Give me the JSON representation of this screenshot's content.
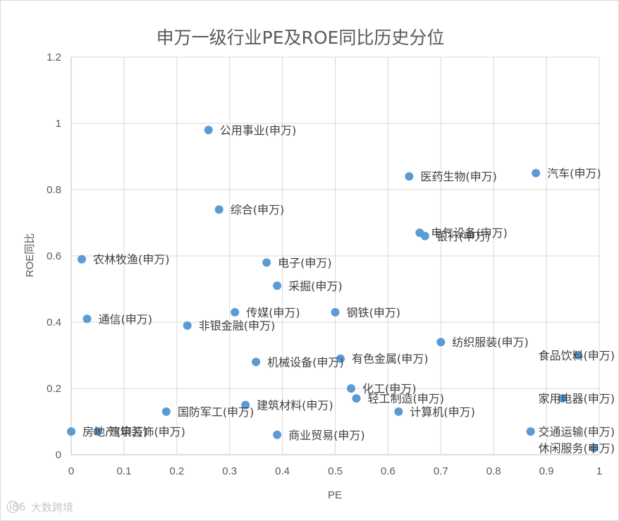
{
  "chart_data": {
    "type": "scatter",
    "title": "申万一级行业PE及ROE同比历史分位",
    "xlabel": "PE",
    "ylabel": "ROE同比",
    "xlim": [
      0,
      1
    ],
    "ylim": [
      0,
      1.2
    ],
    "x_ticks": [
      "0",
      "0.1",
      "0.2",
      "0.3",
      "0.4",
      "0.5",
      "0.6",
      "0.7",
      "0.8",
      "0.9",
      "1"
    ],
    "y_ticks": [
      "0",
      "0.2",
      "0.4",
      "0.6",
      "0.8",
      "1",
      "1.2"
    ],
    "grid": true,
    "point_color": "#5b9bd5",
    "points": [
      {
        "label": "公用事业(申万)",
        "x": 0.26,
        "y": 0.98
      },
      {
        "label": "医药生物(申万)",
        "x": 0.64,
        "y": 0.84
      },
      {
        "label": "汽车(申万)",
        "x": 0.88,
        "y": 0.85
      },
      {
        "label": "综合(申万)",
        "x": 0.28,
        "y": 0.74
      },
      {
        "label": "电气设备(申万)",
        "x": 0.66,
        "y": 0.67
      },
      {
        "label": "银行(申万)",
        "x": 0.67,
        "y": 0.66
      },
      {
        "label": "农林牧渔(申万)",
        "x": 0.02,
        "y": 0.59
      },
      {
        "label": "电子(申万)",
        "x": 0.37,
        "y": 0.58
      },
      {
        "label": "采掘(申万)",
        "x": 0.39,
        "y": 0.51
      },
      {
        "label": "传媒(申万)",
        "x": 0.31,
        "y": 0.43
      },
      {
        "label": "钢铁(申万)",
        "x": 0.5,
        "y": 0.43
      },
      {
        "label": "通信(申万)",
        "x": 0.03,
        "y": 0.41
      },
      {
        "label": "非银金融(申万)",
        "x": 0.22,
        "y": 0.39
      },
      {
        "label": "纺织服装(申万)",
        "x": 0.7,
        "y": 0.34
      },
      {
        "label": "食品饮料(申万)",
        "x": 0.96,
        "y": 0.3
      },
      {
        "label": "有色金属(申万)",
        "x": 0.51,
        "y": 0.29
      },
      {
        "label": "机械设备(申万)",
        "x": 0.35,
        "y": 0.28
      },
      {
        "label": "化工(申万)",
        "x": 0.53,
        "y": 0.2
      },
      {
        "label": "轻工制造(申万)",
        "x": 0.54,
        "y": 0.17
      },
      {
        "label": "家用电器(申万)",
        "x": 0.93,
        "y": 0.17
      },
      {
        "label": "建筑材料(申万)",
        "x": 0.33,
        "y": 0.15
      },
      {
        "label": "国防军工(申万)",
        "x": 0.18,
        "y": 0.13
      },
      {
        "label": "计算机(申万)",
        "x": 0.62,
        "y": 0.13
      },
      {
        "label": "房地产(申万)",
        "x": 0.0,
        "y": 0.07
      },
      {
        "label": "建筑装饰(申万)",
        "x": 0.05,
        "y": 0.07
      },
      {
        "label": "交通运输(申万)",
        "x": 0.87,
        "y": 0.07
      },
      {
        "label": "商业贸易(申万)",
        "x": 0.39,
        "y": 0.06
      },
      {
        "label": "休闲服务(申万)",
        "x": 0.99,
        "y": 0.02
      }
    ]
  },
  "watermark": {
    "text": "大数跨境",
    "logo_text": "i86"
  }
}
